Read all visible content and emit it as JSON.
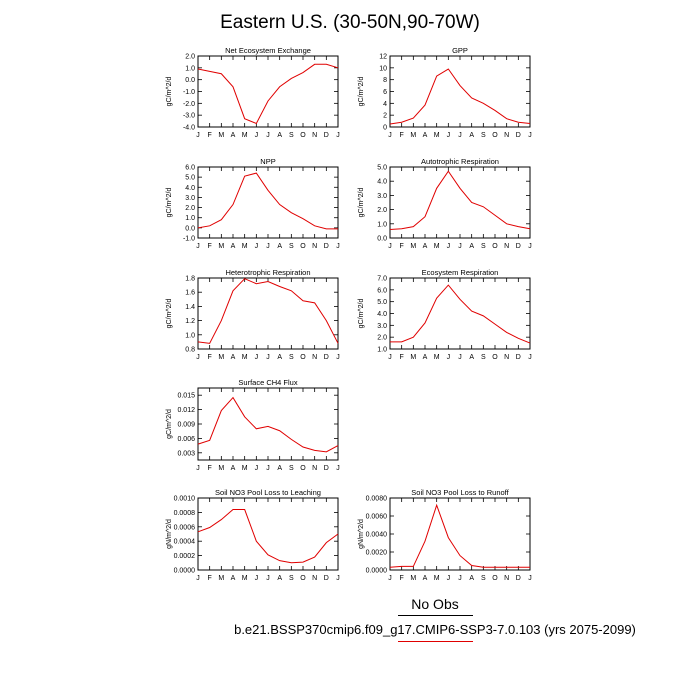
{
  "figure": {
    "title": "Eastern U.S. (30-50N,90-70W)",
    "legend": [
      {
        "label": "No Obs",
        "color": "#000000"
      },
      {
        "label": "b.e21.BSSP370cmip6.f09_g17.CMIP6-SSP3-7.0.103 (yrs 2075-2099)",
        "color": "#e00000"
      }
    ]
  },
  "chart_data": [
    {
      "type": "line",
      "title": "Net Ecosystem Exchange",
      "ylabel": "gC/m^2/d",
      "xlabel": "",
      "x": [
        "J",
        "F",
        "M",
        "A",
        "M",
        "J",
        "J",
        "A",
        "S",
        "O",
        "N",
        "D",
        "J"
      ],
      "ylim": [
        -4.0,
        2.0
      ],
      "yticks": [
        -4.0,
        -3.0,
        -2.0,
        -1.0,
        0.0,
        1.0,
        2.0
      ],
      "yticklabels": [
        "-4.0",
        "-3.0",
        "-2.0",
        "-1.0",
        "0.0",
        "1.0",
        "2.0"
      ],
      "series": [
        {
          "values": [
            0.9,
            0.7,
            0.5,
            -0.6,
            -3.3,
            -3.7,
            -1.8,
            -0.6,
            0.1,
            0.6,
            1.3,
            1.3,
            1.0
          ],
          "color": "#e00000"
        }
      ]
    },
    {
      "type": "line",
      "title": "GPP",
      "ylabel": "gC/m^2/d",
      "xlabel": "",
      "x": [
        "J",
        "F",
        "M",
        "A",
        "M",
        "J",
        "J",
        "A",
        "S",
        "O",
        "N",
        "D",
        "J"
      ],
      "ylim": [
        0,
        12
      ],
      "yticks": [
        0,
        2,
        4,
        6,
        8,
        10,
        12
      ],
      "yticklabels": [
        "0",
        "2",
        "4",
        "6",
        "8",
        "10",
        "12"
      ],
      "series": [
        {
          "values": [
            0.5,
            0.8,
            1.5,
            3.7,
            8.6,
            9.8,
            7.0,
            4.9,
            4.0,
            2.8,
            1.4,
            0.8,
            0.6
          ],
          "color": "#e00000"
        }
      ]
    },
    {
      "type": "line",
      "title": "NPP",
      "ylabel": "gC/m^2/d",
      "xlabel": "",
      "x": [
        "J",
        "F",
        "M",
        "A",
        "M",
        "J",
        "J",
        "A",
        "S",
        "O",
        "N",
        "D",
        "J"
      ],
      "ylim": [
        -1.0,
        6.0
      ],
      "yticks": [
        -1.0,
        0.0,
        1.0,
        2.0,
        3.0,
        4.0,
        5.0,
        6.0
      ],
      "yticklabels": [
        "-1.0",
        "0.0",
        "1.0",
        "2.0",
        "3.0",
        "4.0",
        "5.0",
        "6.0"
      ],
      "series": [
        {
          "values": [
            0.0,
            0.2,
            0.8,
            2.3,
            5.1,
            5.4,
            3.7,
            2.3,
            1.5,
            0.9,
            0.2,
            -0.1,
            -0.1
          ],
          "color": "#e00000"
        }
      ]
    },
    {
      "type": "line",
      "title": "Autotrophic Respiration",
      "ylabel": "gC/m^2/d",
      "xlabel": "",
      "x": [
        "J",
        "F",
        "M",
        "A",
        "M",
        "J",
        "J",
        "A",
        "S",
        "O",
        "N",
        "D",
        "J"
      ],
      "ylim": [
        0.0,
        5.0
      ],
      "yticks": [
        0.0,
        1.0,
        2.0,
        3.0,
        4.0,
        5.0
      ],
      "yticklabels": [
        "0.0",
        "1.0",
        "2.0",
        "3.0",
        "4.0",
        "5.0"
      ],
      "series": [
        {
          "values": [
            0.6,
            0.65,
            0.8,
            1.5,
            3.5,
            4.7,
            3.5,
            2.5,
            2.2,
            1.6,
            1.0,
            0.8,
            0.65
          ],
          "color": "#e00000"
        }
      ]
    },
    {
      "type": "line",
      "title": "Heterotrophic Respiration",
      "ylabel": "gC/m^2/d",
      "xlabel": "",
      "x": [
        "J",
        "F",
        "M",
        "A",
        "M",
        "J",
        "J",
        "A",
        "S",
        "O",
        "N",
        "D",
        "J"
      ],
      "ylim": [
        0.8,
        1.8
      ],
      "yticks": [
        0.8,
        1.0,
        1.2,
        1.4,
        1.6,
        1.8
      ],
      "yticklabels": [
        "0.8",
        "1.0",
        "1.2",
        "1.4",
        "1.6",
        "1.8"
      ],
      "series": [
        {
          "values": [
            0.9,
            0.88,
            1.2,
            1.62,
            1.79,
            1.72,
            1.75,
            1.68,
            1.62,
            1.48,
            1.45,
            1.2,
            0.88
          ],
          "color": "#e00000"
        }
      ]
    },
    {
      "type": "line",
      "title": "Ecosystem Respiration",
      "ylabel": "gC/m^2/d",
      "xlabel": "",
      "x": [
        "J",
        "F",
        "M",
        "A",
        "M",
        "J",
        "J",
        "A",
        "S",
        "O",
        "N",
        "D",
        "J"
      ],
      "ylim": [
        1.0,
        7.0
      ],
      "yticks": [
        1.0,
        2.0,
        3.0,
        4.0,
        5.0,
        6.0,
        7.0
      ],
      "yticklabels": [
        "1.0",
        "2.0",
        "3.0",
        "4.0",
        "5.0",
        "6.0",
        "7.0"
      ],
      "series": [
        {
          "values": [
            1.6,
            1.6,
            2.0,
            3.2,
            5.3,
            6.4,
            5.2,
            4.2,
            3.8,
            3.1,
            2.4,
            1.9,
            1.5
          ],
          "color": "#e00000"
        }
      ]
    },
    {
      "type": "line",
      "title": "Surface CH4 Flux",
      "ylabel": "gC/m^2/d",
      "xlabel": "",
      "x": [
        "J",
        "F",
        "M",
        "A",
        "M",
        "J",
        "J",
        "A",
        "S",
        "O",
        "N",
        "D",
        "J"
      ],
      "ylim": [
        0.0015,
        0.0165
      ],
      "yticks": [
        0.003,
        0.006,
        0.009,
        0.012,
        0.015
      ],
      "yticklabels": [
        "0.003",
        "0.006",
        "0.009",
        "0.012",
        "0.015"
      ],
      "series": [
        {
          "values": [
            0.0048,
            0.0056,
            0.0118,
            0.0145,
            0.0105,
            0.008,
            0.0085,
            0.0076,
            0.0058,
            0.0042,
            0.0035,
            0.0032,
            0.0045
          ],
          "color": "#e00000"
        }
      ]
    },
    {
      "type": "line",
      "title": "Soil NO3 Pool Loss to Leaching",
      "ylabel": "gN/m^2/d",
      "xlabel": "",
      "x": [
        "J",
        "F",
        "M",
        "A",
        "M",
        "J",
        "J",
        "A",
        "S",
        "O",
        "N",
        "D",
        "J"
      ],
      "ylim": [
        0.0,
        0.001
      ],
      "yticks": [
        0.0,
        0.0002,
        0.0004,
        0.0006,
        0.0008,
        0.001
      ],
      "yticklabels": [
        "0.0000",
        "0.0002",
        "0.0004",
        "0.0006",
        "0.0008",
        "0.0010"
      ],
      "series": [
        {
          "values": [
            0.00053,
            0.00059,
            0.0007,
            0.00084,
            0.00084,
            0.0004,
            0.00021,
            0.00013,
            0.0001,
            0.00011,
            0.00018,
            0.00038,
            0.0005
          ],
          "color": "#e00000"
        }
      ]
    },
    {
      "type": "line",
      "title": "Soil NO3 Pool Loss to Runoff",
      "ylabel": "gN/m^2/d",
      "xlabel": "",
      "x": [
        "J",
        "F",
        "M",
        "A",
        "M",
        "J",
        "J",
        "A",
        "S",
        "O",
        "N",
        "D",
        "J"
      ],
      "ylim": [
        0.0,
        0.008
      ],
      "yticks": [
        0.0,
        0.002,
        0.004,
        0.006,
        0.008
      ],
      "yticklabels": [
        "0.0000",
        "0.0020",
        "0.0040",
        "0.0060",
        "0.0080"
      ],
      "series": [
        {
          "values": [
            0.0003,
            0.0004,
            0.0004,
            0.0032,
            0.0072,
            0.0036,
            0.0016,
            0.0005,
            0.0003,
            0.0003,
            0.0003,
            0.0003,
            0.0003
          ],
          "color": "#e00000"
        }
      ]
    }
  ]
}
